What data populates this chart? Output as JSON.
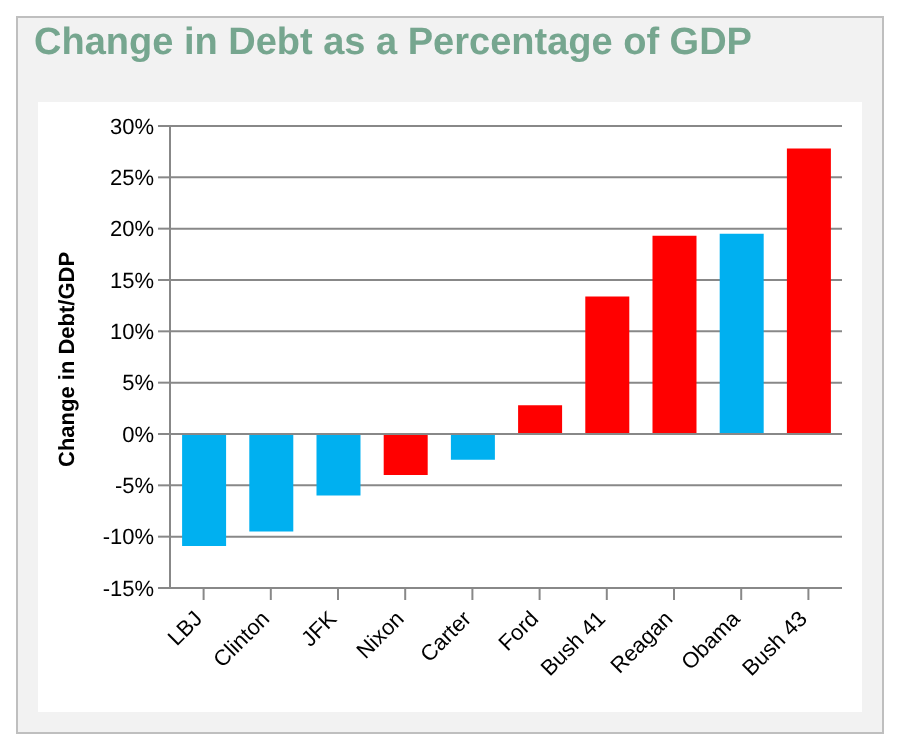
{
  "chart_data": {
    "type": "bar",
    "title": "Change in Debt as a Percentage of GDP",
    "ylabel": "Change in Debt/GDP",
    "categories": [
      "LBJ",
      "Clinton",
      "JFK",
      "Nixon",
      "Carter",
      "Ford",
      "Bush 41",
      "Reagan",
      "Obama",
      "Bush 43"
    ],
    "values": [
      -10.9,
      -9.5,
      -6.0,
      -4.0,
      -2.5,
      2.8,
      13.4,
      19.3,
      19.5,
      27.8
    ],
    "colors": [
      "#00b0f0",
      "#00b0f0",
      "#00b0f0",
      "#ff0000",
      "#00b0f0",
      "#ff0000",
      "#ff0000",
      "#ff0000",
      "#00b0f0",
      "#ff0000"
    ],
    "ylim": [
      -15,
      30
    ],
    "yticks": [
      {
        "value": -15,
        "label": "-15%"
      },
      {
        "value": -10,
        "label": "-10%"
      },
      {
        "value": -5,
        "label": "-5%"
      },
      {
        "value": 0,
        "label": "0%"
      },
      {
        "value": 5,
        "label": "5%"
      },
      {
        "value": 10,
        "label": "10%"
      },
      {
        "value": 15,
        "label": "15%"
      },
      {
        "value": 20,
        "label": "20%"
      },
      {
        "value": 25,
        "label": "25%"
      },
      {
        "value": 30,
        "label": "30%"
      }
    ],
    "grid": "y"
  }
}
